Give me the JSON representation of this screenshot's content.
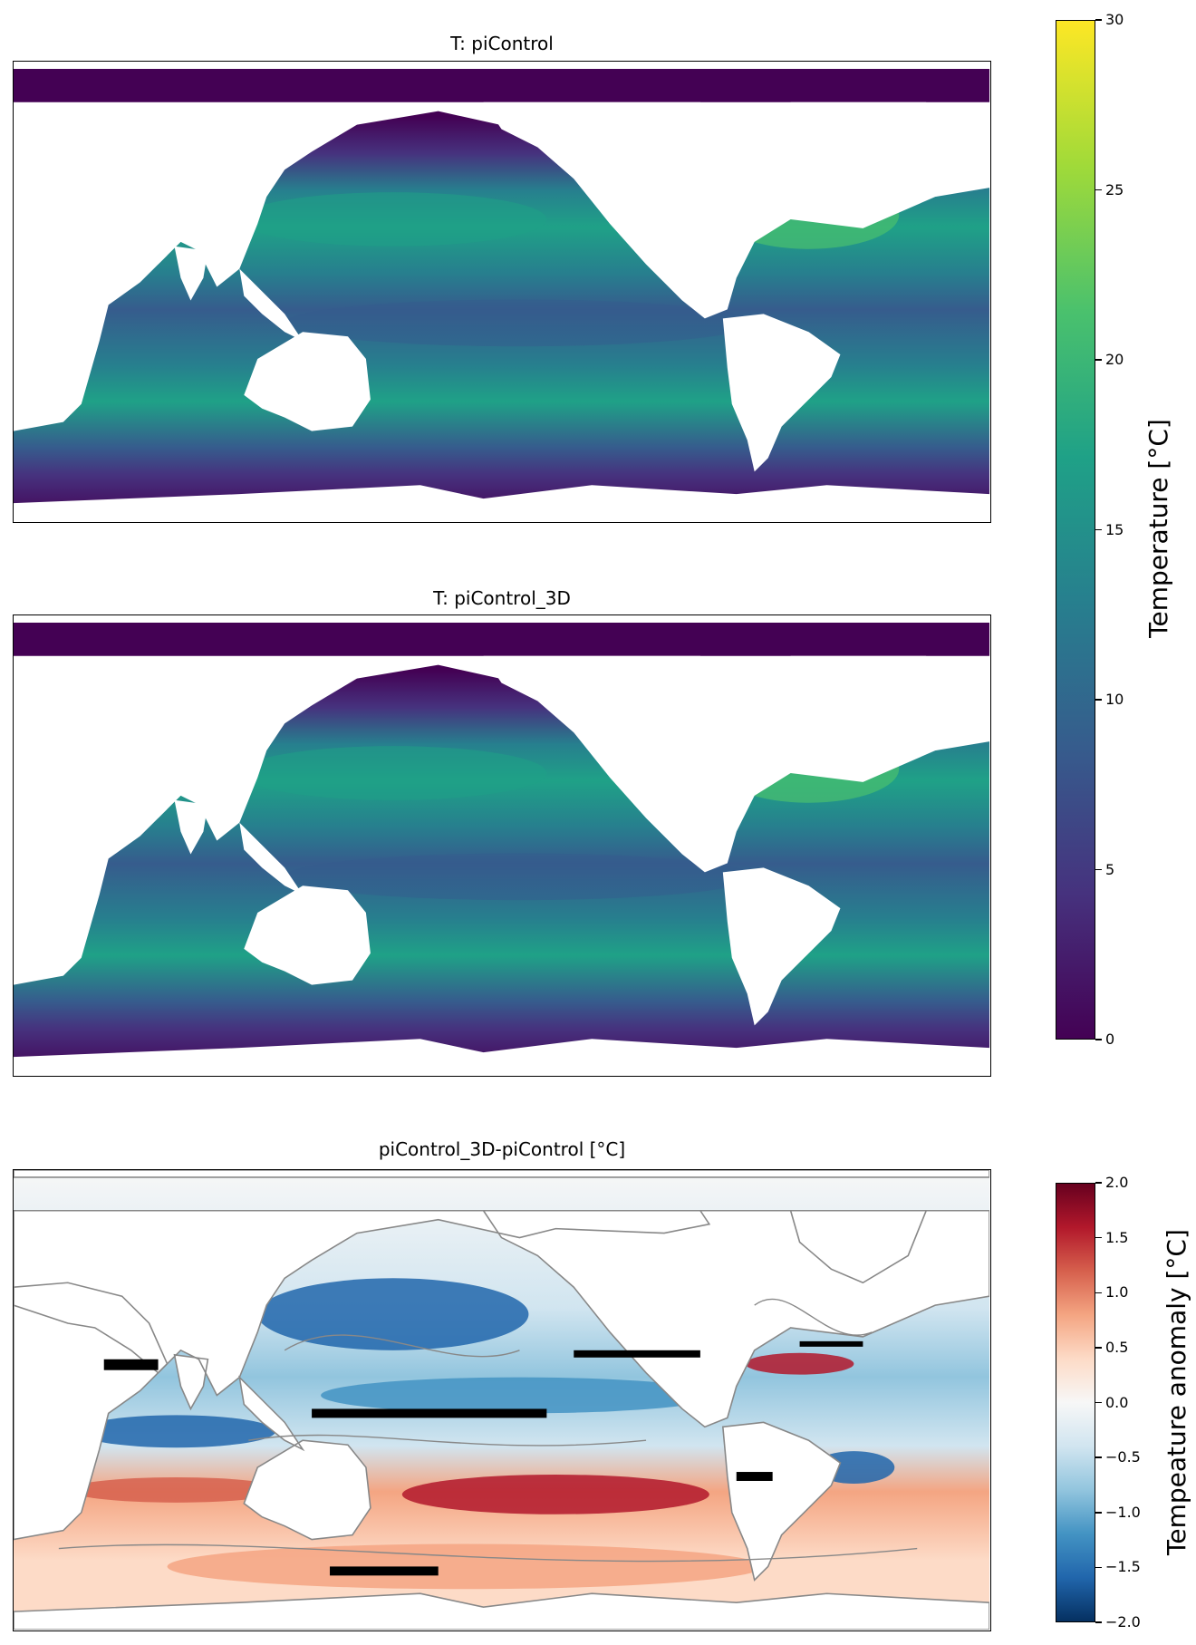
{
  "chart_data": [
    {
      "type": "heatmap",
      "title": "T: piControl",
      "variable": "sea temperature",
      "projection": "global map (longitude 20°E → 380°E)",
      "land": "white",
      "colormap": "viridis",
      "vmin": 0,
      "vmax": 30,
      "colorbar": {
        "label": "Temperature [°C]",
        "ticks": [
          0,
          5,
          10,
          15,
          20,
          25,
          30
        ],
        "tick_labels": [
          "0",
          "5",
          "10",
          "15",
          "20",
          "25",
          "30"
        ],
        "shared_with": "T: piControl_3D"
      },
      "features": [
        "warmest values ~20–23 °C in the subtropical North Atlantic and Kuroshio region",
        "~15–19 °C across subtropical southern oceans",
        "~10–14 °C in equatorial Pacific",
        "near 0–3 °C in Southern Ocean and Arctic"
      ]
    },
    {
      "type": "heatmap",
      "title": "T: piControl_3D",
      "variable": "sea temperature",
      "land": "white",
      "colormap": "viridis",
      "vmin": 0,
      "vmax": 30,
      "features": [
        "pattern nearly identical to piControl",
        "warmest values ~20–23 °C in subtropical North Atlantic"
      ]
    },
    {
      "type": "heatmap",
      "title": "piControl_3D-piControl [°C]",
      "variable": "temperature anomaly",
      "colormap": "RdBu_r",
      "vmin": -2.0,
      "vmax": 2.0,
      "overlays": [
        "grey contour lines",
        "black stippling"
      ],
      "colorbar": {
        "label": "Tempeature anomaly [°C]",
        "ticks": [
          2.0,
          1.5,
          1.0,
          0.5,
          0.0,
          -0.5,
          -1.0,
          -1.5,
          -2.0
        ],
        "tick_labels": [
          "2.0",
          "1.5",
          "1.0",
          "0.5",
          "0.0",
          "−0.5",
          "−1.0",
          "−1.5",
          "−2.0"
        ]
      },
      "features": [
        "negative anomalies (~−1 to −2) in North Pacific and subtropical bands",
        "positive anomalies (~+1 to +2) in Gulf Stream region and South Pacific",
        "mixed anomalies in the Southern Ocean"
      ]
    }
  ],
  "colors": {
    "viridis": [
      "#440154",
      "#46327e",
      "#365c8d",
      "#277f8e",
      "#1fa187",
      "#4ac16d",
      "#a0da39",
      "#fde725"
    ],
    "rdbu": [
      "#053061",
      "#2166ac",
      "#4393c3",
      "#92c5de",
      "#d1e5f0",
      "#f7f7f7",
      "#fddbc7",
      "#f4a582",
      "#d6604d",
      "#b2182b",
      "#67001f"
    ],
    "land": "#ffffff",
    "contour": "#888888",
    "stipple": "#000000"
  }
}
